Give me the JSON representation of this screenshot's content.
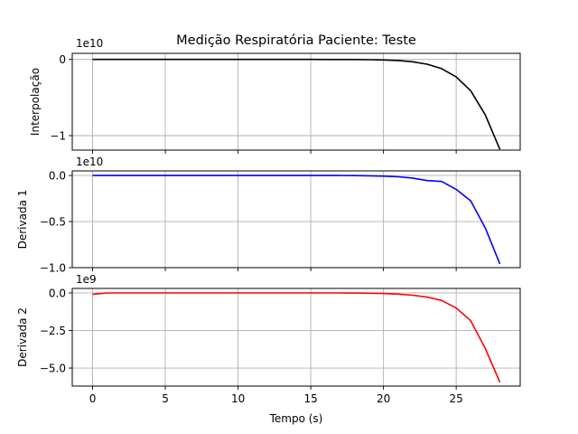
{
  "chart_data": [
    {
      "type": "line",
      "title": "Medição Respiratória Paciente: Teste",
      "xlabel": "",
      "ylabel": "Interpolação",
      "offset_text": "1e10",
      "xlim": [
        -1.4,
        29.4
      ],
      "ylim": [
        -1.19,
        0.08
      ],
      "xticks": [
        0,
        5,
        10,
        15,
        20,
        25
      ],
      "xtick_labels": [
        "",
        "",
        "",
        "",
        "",
        ""
      ],
      "yticks": [
        0,
        -1
      ],
      "ytick_labels": [
        "0",
        "−1"
      ],
      "grid": true,
      "color": "#000000",
      "x": [
        0,
        1,
        2,
        3,
        4,
        5,
        6,
        7,
        8,
        9,
        10,
        11,
        12,
        13,
        14,
        15,
        16,
        17,
        18,
        19,
        20,
        21,
        22,
        23,
        24,
        25,
        26,
        27,
        28
      ],
      "values": [
        0,
        0,
        0,
        0,
        0,
        0,
        0,
        0,
        0,
        0,
        0,
        0,
        0,
        0,
        -3e-05,
        -8e-05,
        -0.0002,
        -0.0005,
        -0.0012,
        -0.003,
        -0.0065,
        -0.014,
        -0.03,
        -0.062,
        -0.12,
        -0.23,
        -0.41,
        -0.73,
        -1.18
      ]
    },
    {
      "type": "line",
      "title": "",
      "xlabel": "",
      "ylabel": "Derivada 1",
      "offset_text": "1e10",
      "xlim": [
        -1.4,
        29.4
      ],
      "ylim": [
        -1.0,
        0.05
      ],
      "xticks": [
        0,
        5,
        10,
        15,
        20,
        25
      ],
      "xtick_labels": [
        "",
        "",
        "",
        "",
        "",
        ""
      ],
      "yticks": [
        0,
        -0.5,
        -1.0
      ],
      "ytick_labels": [
        "0.0",
        "−0.5",
        "−1.0"
      ],
      "grid": true,
      "color": "#0000ff",
      "x": [
        0,
        1,
        2,
        3,
        4,
        5,
        6,
        7,
        8,
        9,
        10,
        11,
        12,
        13,
        14,
        15,
        16,
        17,
        18,
        19,
        20,
        21,
        22,
        23,
        24,
        25,
        26,
        27,
        28
      ],
      "values": [
        0,
        0,
        0,
        0,
        0,
        0,
        0,
        0,
        0,
        0,
        0,
        0,
        0,
        0,
        -3e-05,
        -8e-05,
        -0.0002,
        -0.0005,
        -0.0012,
        -0.003,
        -0.0065,
        -0.014,
        -0.028,
        -0.055,
        -0.065,
        -0.15,
        -0.275,
        -0.57,
        -0.96
      ]
    },
    {
      "type": "line",
      "title": "",
      "xlabel": "Tempo (s)",
      "ylabel": "Derivada 2",
      "offset_text": "1e9",
      "xlim": [
        -1.4,
        29.4
      ],
      "ylim": [
        -6.2,
        0.3
      ],
      "xticks": [
        0,
        5,
        10,
        15,
        20,
        25
      ],
      "xtick_labels": [
        "0",
        "5",
        "10",
        "15",
        "20",
        "25"
      ],
      "yticks": [
        0,
        -2.5,
        -5.0
      ],
      "ytick_labels": [
        "0.0",
        "−2.5",
        "−5.0"
      ],
      "grid": true,
      "color": "#ff0000",
      "x": [
        0,
        1,
        2,
        3,
        4,
        5,
        6,
        7,
        8,
        9,
        10,
        11,
        12,
        13,
        14,
        15,
        16,
        17,
        18,
        19,
        20,
        21,
        22,
        23,
        24,
        25,
        26,
        27,
        28
      ],
      "values": [
        -0.1,
        0,
        0,
        0,
        0,
        0,
        0,
        0,
        0,
        0,
        0,
        0,
        0,
        0,
        0,
        0,
        -0.001,
        -0.003,
        -0.008,
        -0.02,
        -0.04,
        -0.08,
        -0.15,
        -0.28,
        -0.5,
        -1.0,
        -1.85,
        -3.7,
        -5.95
      ]
    }
  ]
}
